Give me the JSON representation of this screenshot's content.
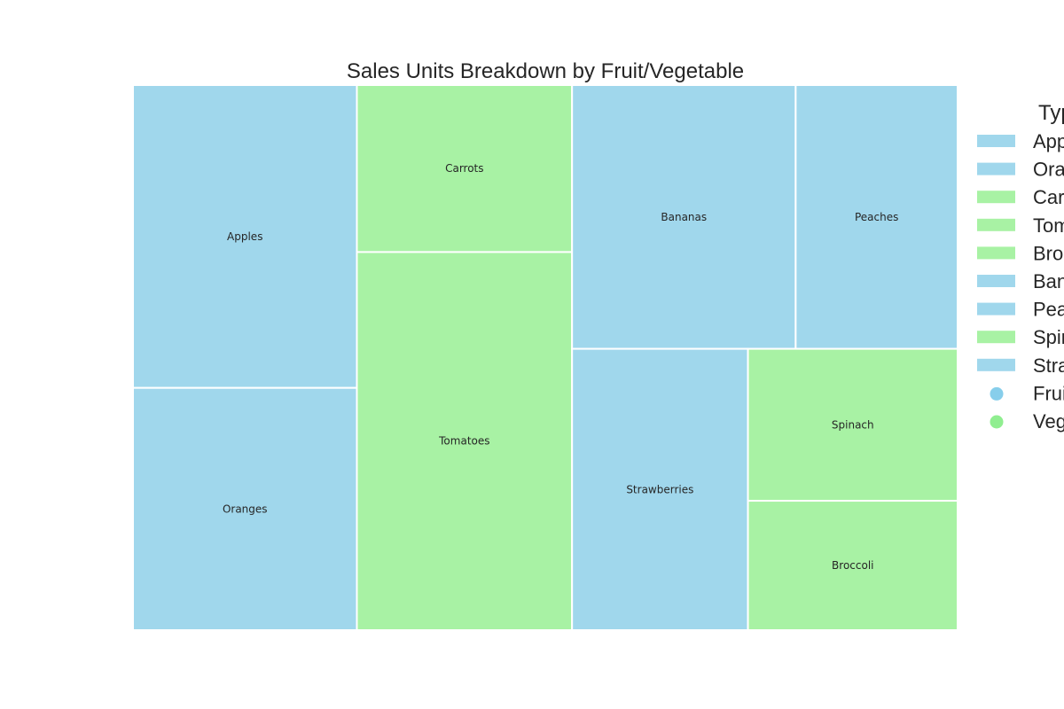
{
  "chart_data": {
    "type": "treemap",
    "title": "Sales Units Breakdown by Fruit/Vegetable",
    "legend": {
      "title": "Type",
      "placement": "right",
      "entries": [
        {
          "label": "Apples",
          "group": "Fruit"
        },
        {
          "label": "Oranges",
          "group": "Fruit"
        },
        {
          "label": "Carrots",
          "group": "Vegetable"
        },
        {
          "label": "Tomatoes",
          "group": "Vegetable"
        },
        {
          "label": "Broccoli",
          "group": "Vegetable"
        },
        {
          "label": "Bananas",
          "group": "Fruit"
        },
        {
          "label": "Peaches",
          "group": "Fruit"
        },
        {
          "label": "Spinach",
          "group": "Vegetable"
        },
        {
          "label": "Strawberries",
          "group": "Fruit"
        }
      ],
      "groups": [
        {
          "label": "Fruit",
          "color": "#87ceeb"
        },
        {
          "label": "Vegetable",
          "color": "#90ee90"
        }
      ]
    },
    "items": [
      {
        "label": "Apples",
        "group": "Fruit",
        "value": 1000
      },
      {
        "label": "Oranges",
        "group": "Fruit",
        "value": 800
      },
      {
        "label": "Carrots",
        "group": "Vegetable",
        "value": 530
      },
      {
        "label": "Tomatoes",
        "group": "Vegetable",
        "value": 1200
      },
      {
        "label": "Bananas",
        "group": "Fruit",
        "value": 870
      },
      {
        "label": "Peaches",
        "group": "Fruit",
        "value": 630
      },
      {
        "label": "Strawberries",
        "group": "Fruit",
        "value": 730
      },
      {
        "label": "Spinach",
        "group": "Vegetable",
        "value": 470
      },
      {
        "label": "Broccoli",
        "group": "Vegetable",
        "value": 400
      }
    ],
    "colors": {
      "Fruit": "#a0d7ec",
      "Vegetable": "#a8f2a4",
      "text": "#262626",
      "background": "#ffffff"
    }
  }
}
